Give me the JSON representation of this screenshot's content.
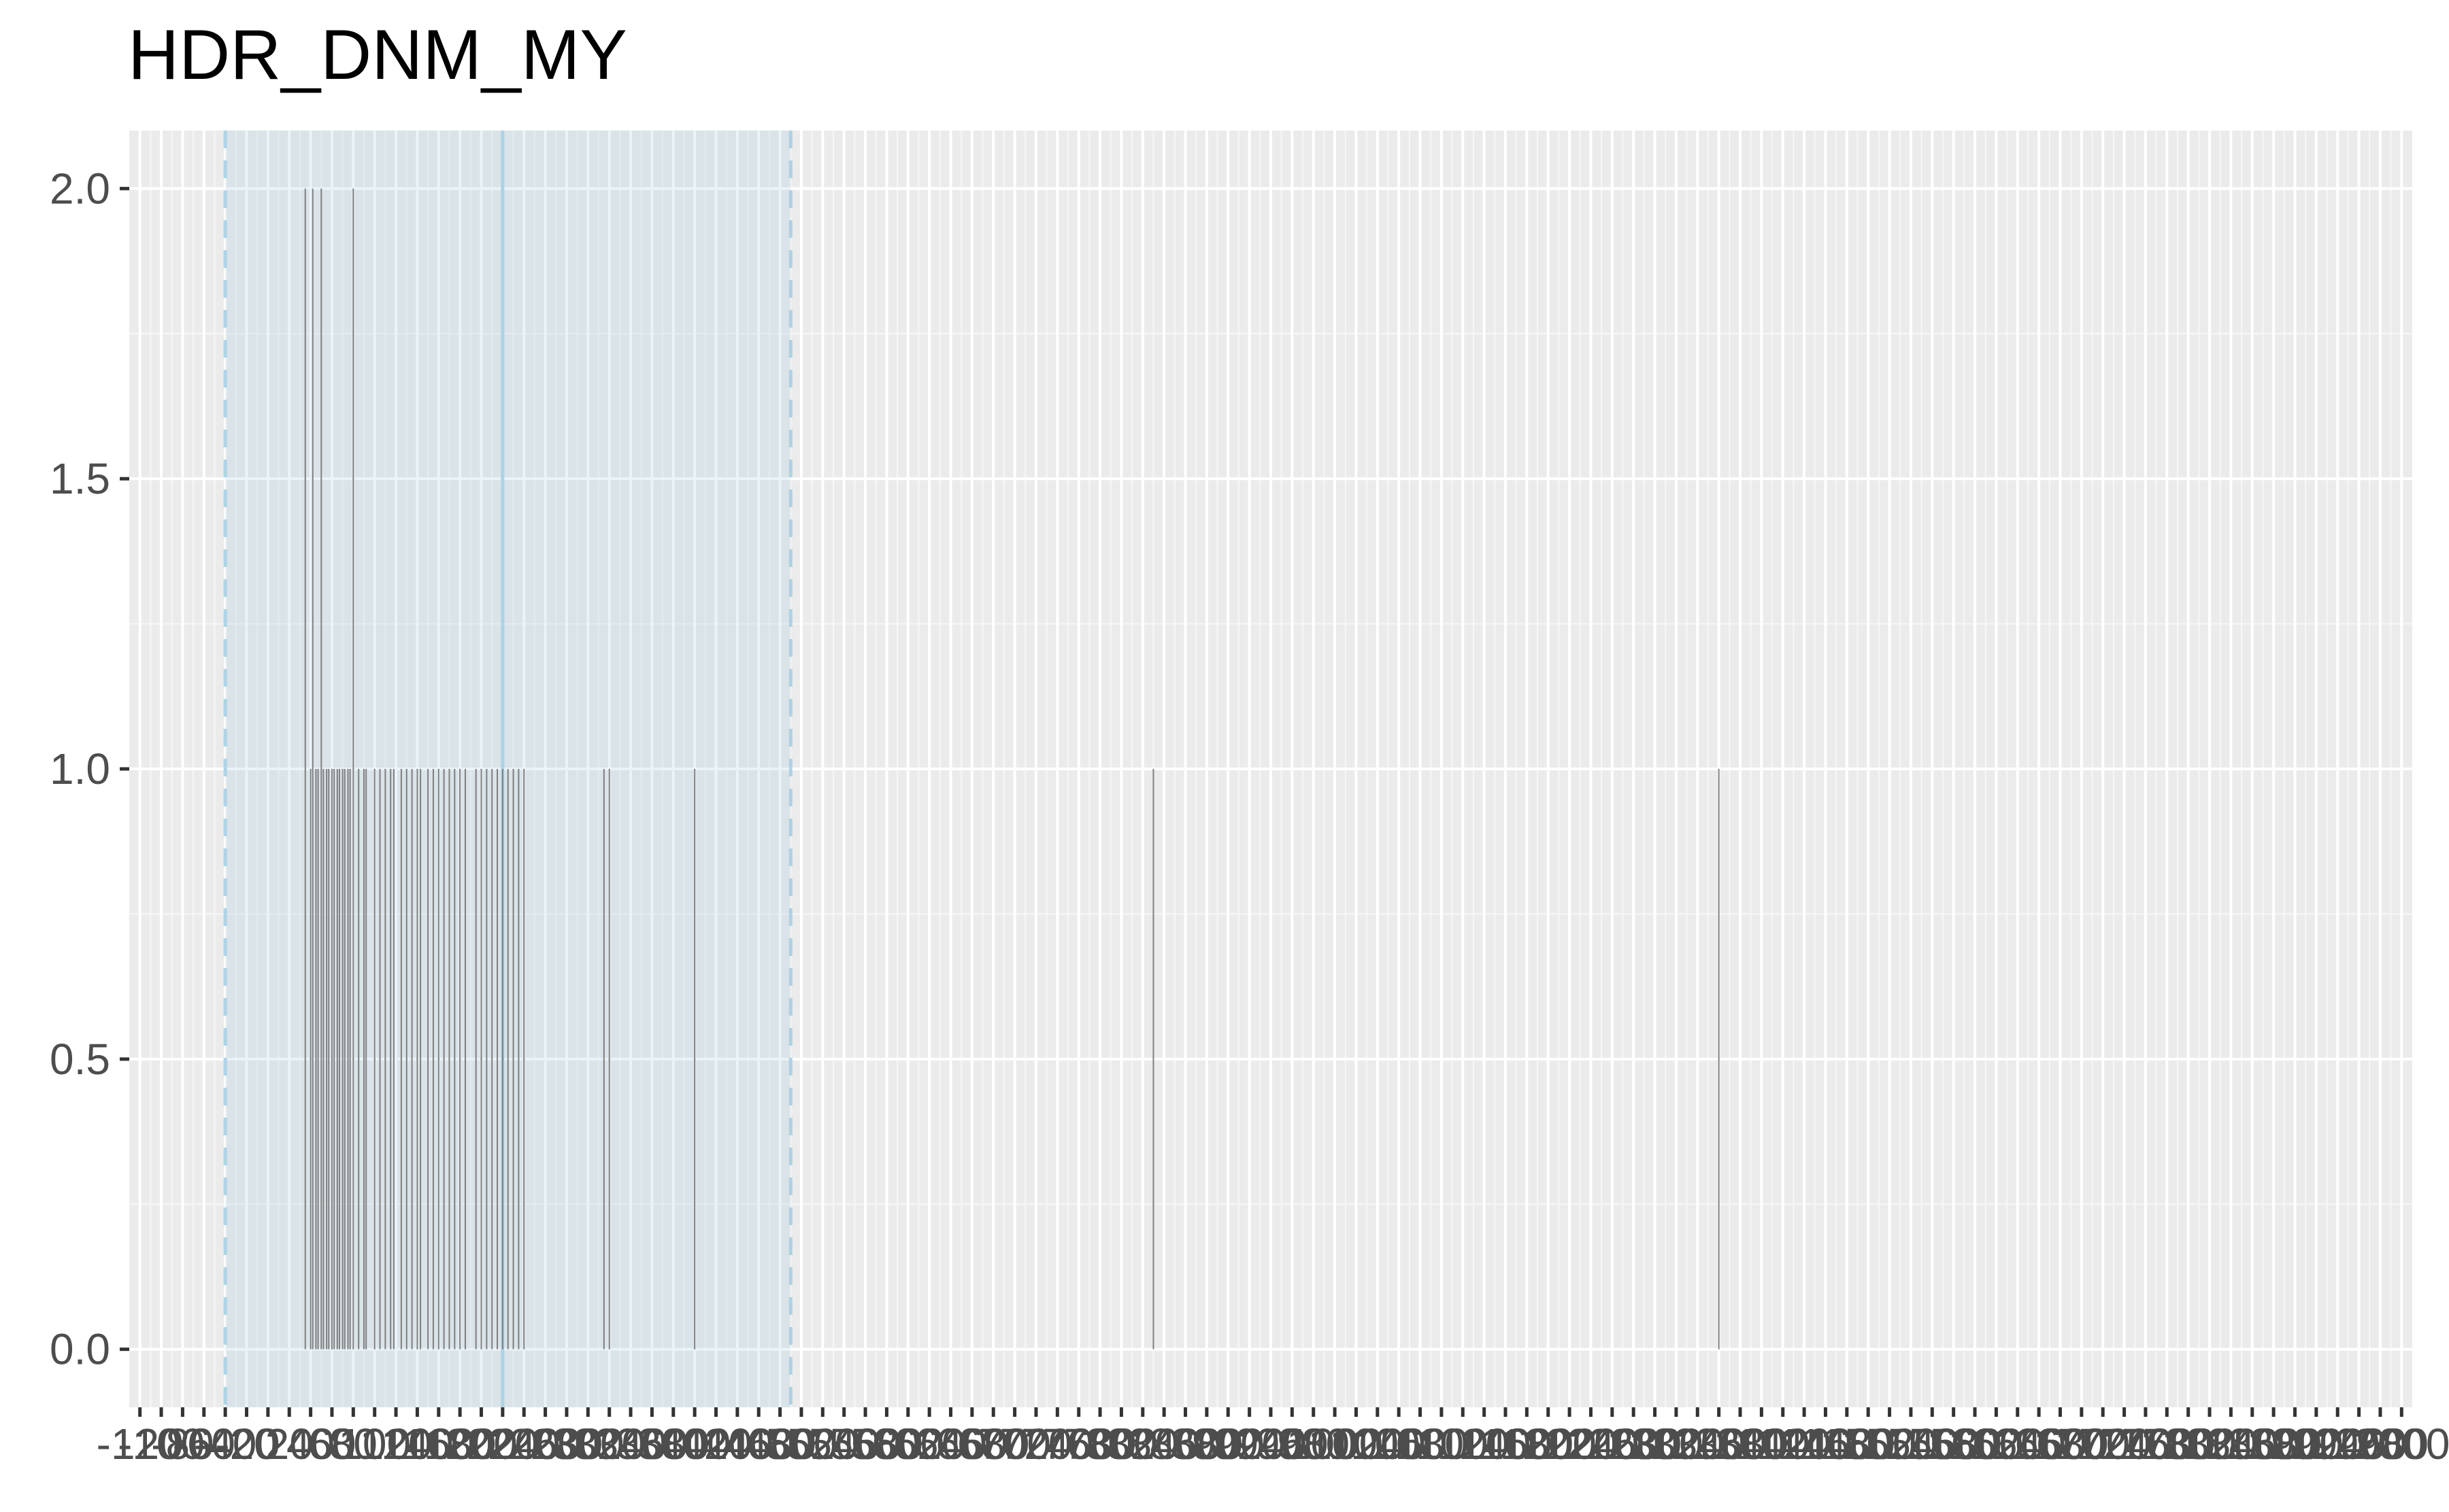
{
  "chart_data": {
    "type": "bar",
    "title": "HDR_DNM_MY",
    "xlabel": "",
    "ylabel": "",
    "xlim": [
      -130,
      2010
    ],
    "ylim": [
      -0.1,
      2.1
    ],
    "y_ticks": [
      0.0,
      0.5,
      1.0,
      1.5,
      2.0
    ],
    "y_tick_labels": [
      "0.0",
      "0.5",
      "1.0",
      "1.5",
      "2.0"
    ],
    "x_tick_start": -120,
    "x_tick_end": 2000,
    "x_tick_step": 20,
    "x_tick_labels_note": "dense overlapping labels every 20 units from -120 to 2000",
    "x_tick_label_first": "-120",
    "x_tick_label_last": "2000",
    "grid": true,
    "highlight_band": {
      "from": -40,
      "to": 490,
      "center": 220,
      "color": "#9ecae1"
    },
    "bar_color": "#7f7f7f",
    "x": [
      35,
      40,
      42,
      45,
      47,
      50,
      52,
      55,
      57,
      60,
      62,
      65,
      67,
      70,
      72,
      75,
      77,
      80,
      85,
      90,
      92,
      100,
      105,
      110,
      115,
      118,
      125,
      130,
      135,
      140,
      143,
      150,
      155,
      160,
      165,
      170,
      175,
      180,
      185,
      195,
      200,
      205,
      210,
      215,
      220,
      225,
      230,
      235,
      240,
      315,
      320,
      400,
      830,
      1360
    ],
    "values": [
      2,
      1,
      2,
      1,
      1,
      2,
      1,
      1,
      1,
      1,
      1,
      1,
      1,
      1,
      1,
      1,
      1,
      2,
      1,
      1,
      1,
      1,
      1,
      1,
      1,
      1,
      1,
      1,
      1,
      1,
      1,
      1,
      1,
      1,
      1,
      1,
      1,
      1,
      1,
      1,
      1,
      1,
      1,
      1,
      1,
      1,
      1,
      1,
      1,
      1,
      1,
      1,
      1,
      1
    ]
  }
}
